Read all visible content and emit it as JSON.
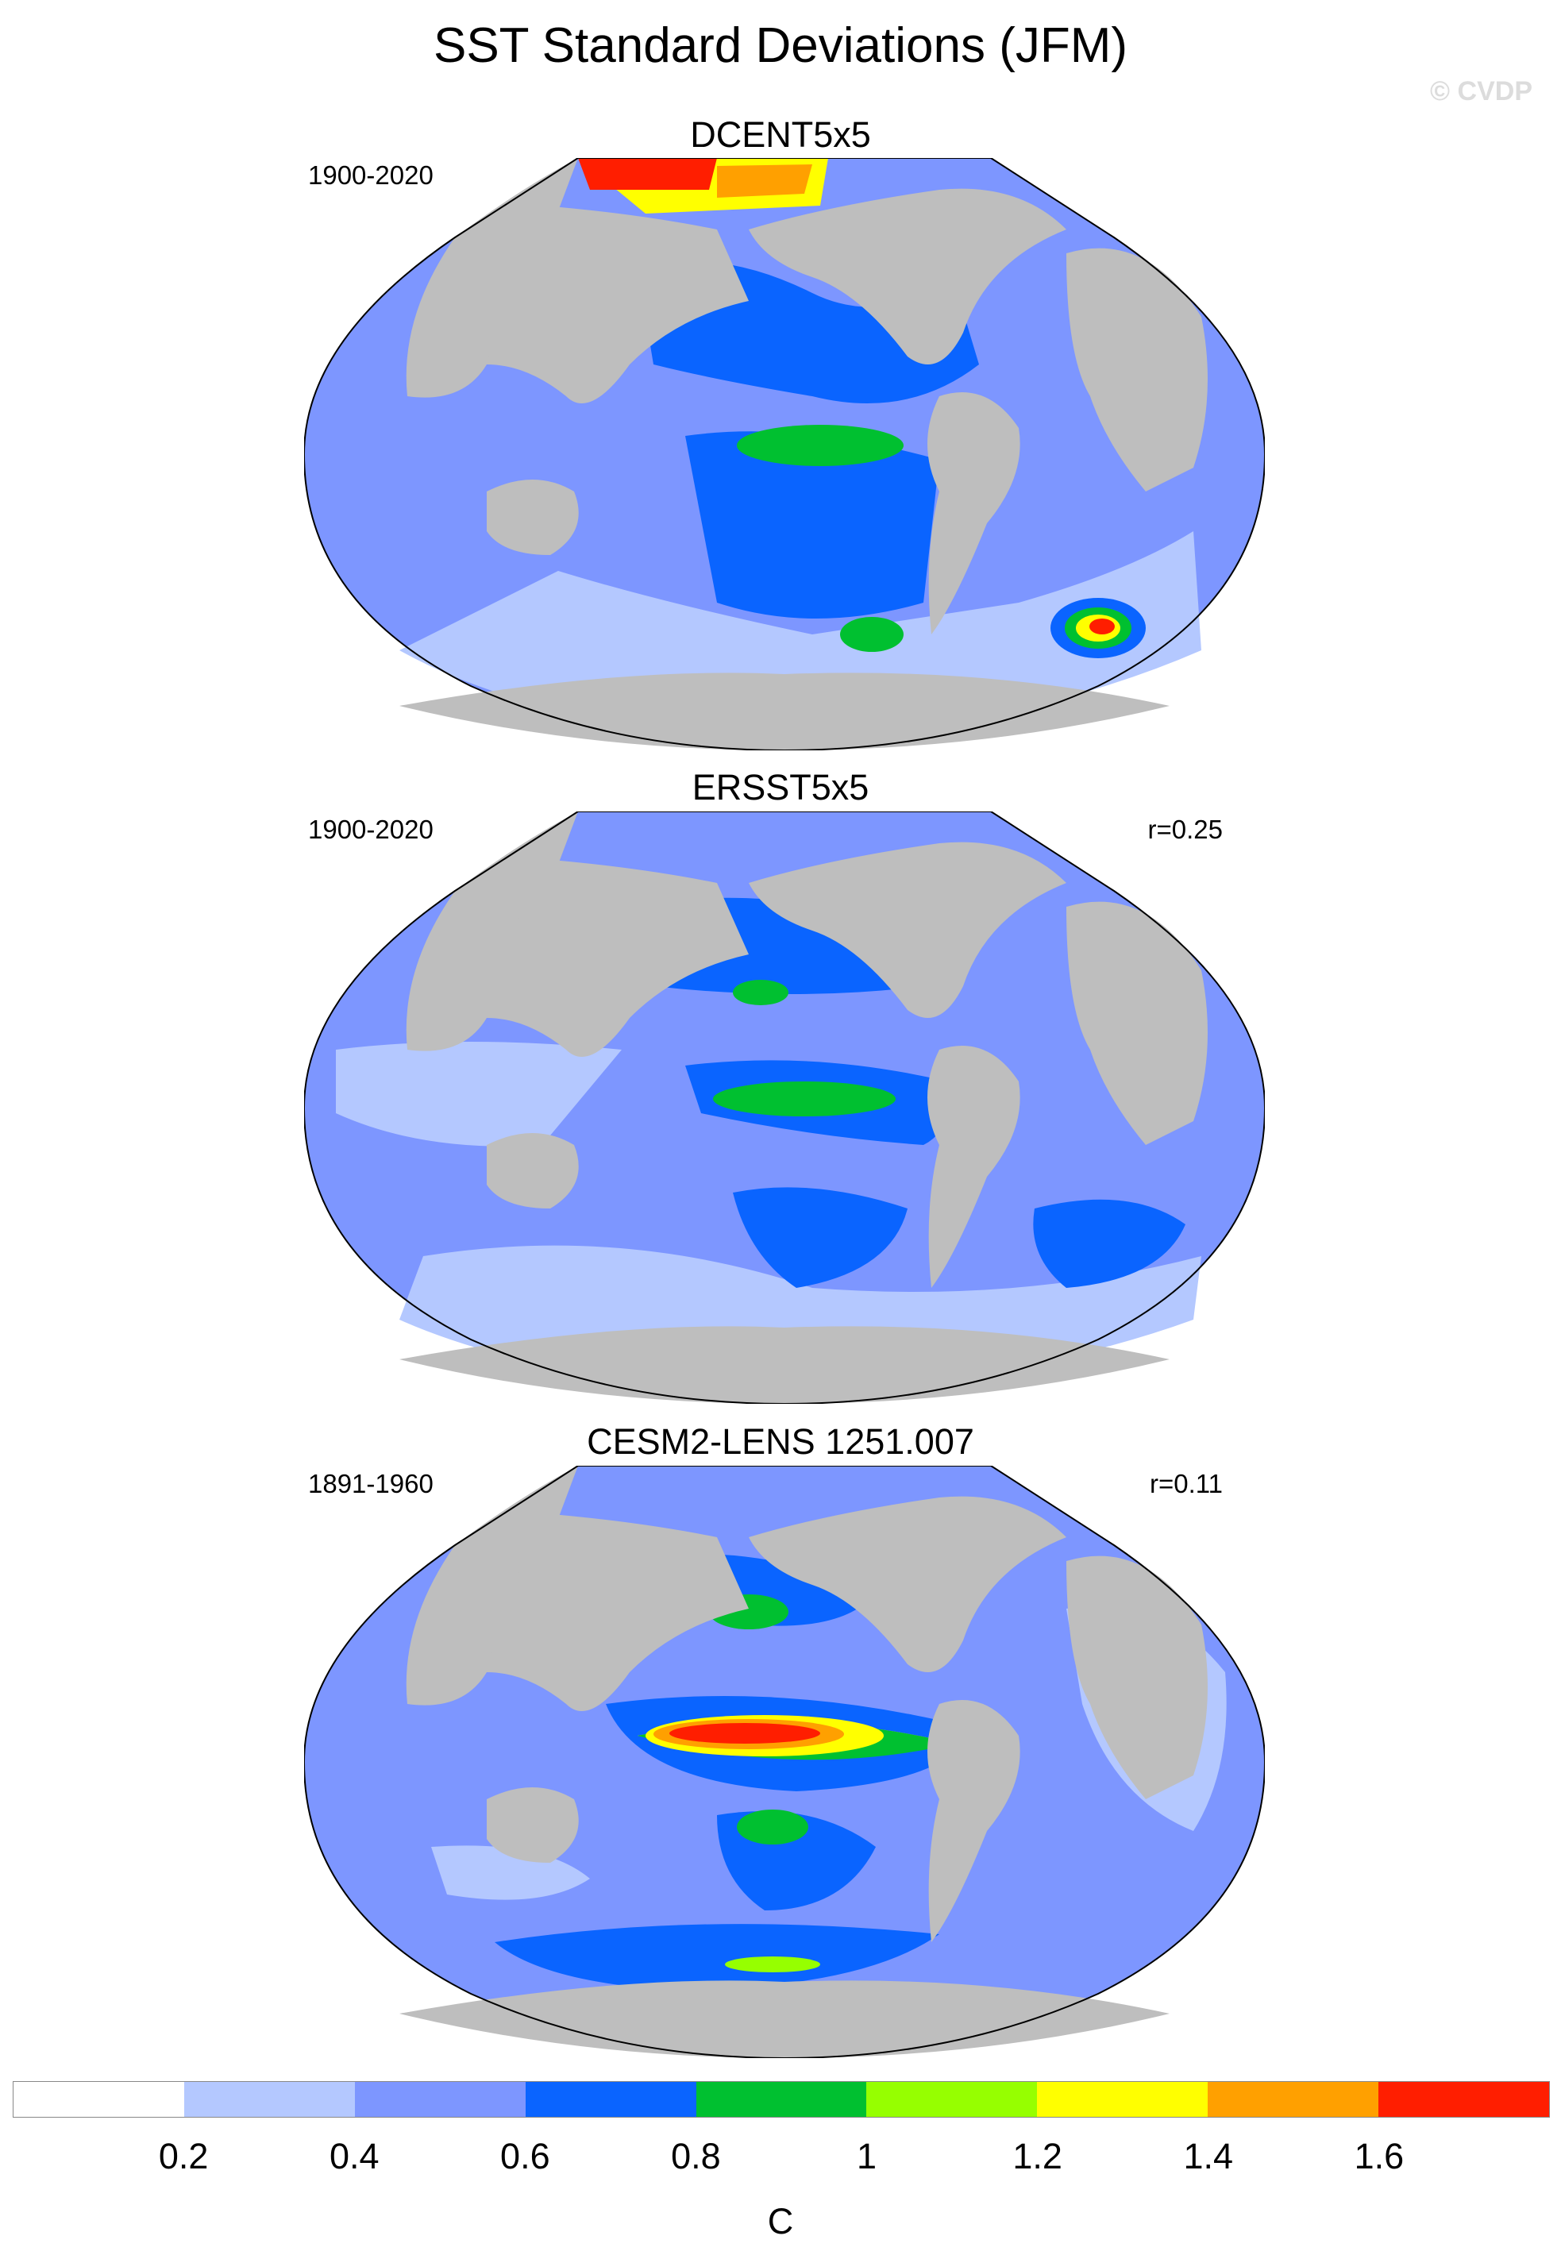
{
  "title": "SST Standard Deviations (JFM)",
  "watermark": "© CVDP",
  "panels": [
    {
      "name": "DCENT5x5",
      "period": "1900-2020",
      "corr": ""
    },
    {
      "name": "ERSST5x5",
      "period": "1900-2020",
      "corr": "r=0.25"
    },
    {
      "name": "CESM2-LENS 1251.007",
      "period": "1891-1960",
      "corr": "r=0.11"
    }
  ],
  "colorbar": {
    "colors": [
      "#ffffff",
      "#b4c8ff",
      "#7d96ff",
      "#0a64ff",
      "#00c030",
      "#96ff00",
      "#ffff00",
      "#ffa000",
      "#ff1e00"
    ],
    "ticks": [
      "0.2",
      "0.4",
      "0.6",
      "0.8",
      "1",
      "1.2",
      "1.4",
      "1.6"
    ],
    "unit": "C"
  },
  "map_colors": {
    "land": "#bebebe",
    "ocean_low": "#b4c8ff",
    "ocean_mid": "#7d96ff"
  }
}
